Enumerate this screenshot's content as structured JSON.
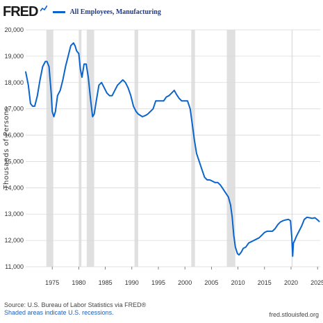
{
  "header": {
    "logo_text": "FRED",
    "legend_label": "All Employees, Manufacturing"
  },
  "footer": {
    "source": "Source: U.S. Bureau of Labor Statistics via FRED®",
    "recession_note": "Shaded areas indicate U.S. recessions.",
    "site": "fred.stlouisfed.org"
  },
  "colors": {
    "series": "#0b64cc",
    "recession": "#e0e0e0",
    "grid": "#d9d9d9"
  },
  "chart_data": {
    "type": "line",
    "title": "",
    "xlabel": "",
    "ylabel": "Thousands of Persons",
    "xlim": [
      1970,
      2025.5
    ],
    "ylim": [
      11000,
      20000
    ],
    "x_ticks": [
      1975,
      1980,
      1985,
      1990,
      1995,
      2000,
      2005,
      2010,
      2015,
      2020,
      2025
    ],
    "x_tick_labels": [
      "1975",
      "1980",
      "1985",
      "1990",
      "1995",
      "2000",
      "2005",
      "2010",
      "2015",
      "2020",
      "2025"
    ],
    "y_ticks": [
      11000,
      12000,
      13000,
      14000,
      15000,
      16000,
      17000,
      18000,
      19000,
      20000
    ],
    "y_tick_labels": [
      "11,000",
      "12,000",
      "13,000",
      "14,000",
      "15,000",
      "16,000",
      "17,000",
      "18,000",
      "19,000",
      "20,000"
    ],
    "grid": true,
    "recessions": [
      [
        1973.9,
        1975.2
      ],
      [
        1980.0,
        1980.5
      ],
      [
        1981.5,
        1982.9
      ],
      [
        1990.5,
        1991.2
      ],
      [
        2001.2,
        2001.9
      ],
      [
        2007.9,
        2009.5
      ],
      [
        2020.1,
        2020.3
      ]
    ],
    "series": [
      {
        "name": "All Employees, Manufacturing",
        "x": [
          1970.0,
          1970.5,
          1970.9,
          1971.3,
          1971.7,
          1972.2,
          1972.7,
          1973.2,
          1973.7,
          1974.0,
          1974.4,
          1974.8,
          1975.0,
          1975.3,
          1975.6,
          1976.0,
          1976.5,
          1977.0,
          1977.5,
          1978.0,
          1978.5,
          1979.0,
          1979.3,
          1979.6,
          1980.0,
          1980.3,
          1980.6,
          1981.0,
          1981.4,
          1981.8,
          1982.2,
          1982.6,
          1982.9,
          1983.3,
          1983.8,
          1984.3,
          1984.8,
          1985.3,
          1985.8,
          1986.3,
          1986.8,
          1987.3,
          1987.8,
          1988.3,
          1988.8,
          1989.3,
          1989.8,
          1990.3,
          1990.8,
          1991.2,
          1991.6,
          1992.0,
          1992.6,
          1993.0,
          1993.5,
          1994.0,
          1994.5,
          1995.0,
          1995.5,
          1996.0,
          1996.5,
          1997.0,
          1997.5,
          1998.0,
          1998.4,
          1998.9,
          1999.4,
          2000.0,
          2000.5,
          2001.0,
          2001.4,
          2001.8,
          2002.2,
          2002.7,
          2003.2,
          2003.7,
          2004.2,
          2004.7,
          2005.2,
          2005.7,
          2006.2,
          2006.7,
          2007.2,
          2007.7,
          2008.2,
          2008.6,
          2008.9,
          2009.2,
          2009.5,
          2009.9,
          2010.2,
          2010.6,
          2011.0,
          2011.5,
          2012.0,
          2012.5,
          2013.0,
          2013.5,
          2014.0,
          2014.5,
          2015.0,
          2015.5,
          2016.0,
          2016.5,
          2017.0,
          2017.5,
          2018.0,
          2018.5,
          2019.0,
          2019.5,
          2019.9,
          2020.15,
          2020.3,
          2020.45,
          2020.7,
          2021.0,
          2021.5,
          2022.0,
          2022.5,
          2023.0,
          2023.5,
          2024.0,
          2024.5,
          2025.0,
          2025.3
        ],
        "values": [
          18400,
          17900,
          17200,
          17100,
          17100,
          17500,
          18100,
          18600,
          18800,
          18800,
          18600,
          17600,
          16900,
          16700,
          16900,
          17500,
          17700,
          18100,
          18600,
          19000,
          19400,
          19500,
          19400,
          19200,
          19100,
          18500,
          18200,
          18700,
          18700,
          18200,
          17400,
          16700,
          16800,
          17300,
          17900,
          18000,
          17800,
          17600,
          17500,
          17500,
          17700,
          17900,
          18000,
          18100,
          18000,
          17800,
          17500,
          17100,
          16900,
          16800,
          16750,
          16700,
          16750,
          16800,
          16900,
          17000,
          17300,
          17300,
          17300,
          17300,
          17450,
          17500,
          17600,
          17700,
          17550,
          17400,
          17300,
          17300,
          17300,
          17000,
          16400,
          15800,
          15300,
          15000,
          14700,
          14400,
          14300,
          14300,
          14250,
          14200,
          14200,
          14100,
          13950,
          13800,
          13650,
          13350,
          12900,
          12200,
          11750,
          11500,
          11450,
          11550,
          11700,
          11750,
          11900,
          11950,
          12000,
          12050,
          12100,
          12200,
          12300,
          12350,
          12350,
          12350,
          12450,
          12600,
          12700,
          12750,
          12780,
          12800,
          12750,
          12100,
          11400,
          11900,
          12000,
          12150,
          12350,
          12550,
          12800,
          12880,
          12860,
          12840,
          12860,
          12780,
          12720
        ]
      }
    ]
  }
}
